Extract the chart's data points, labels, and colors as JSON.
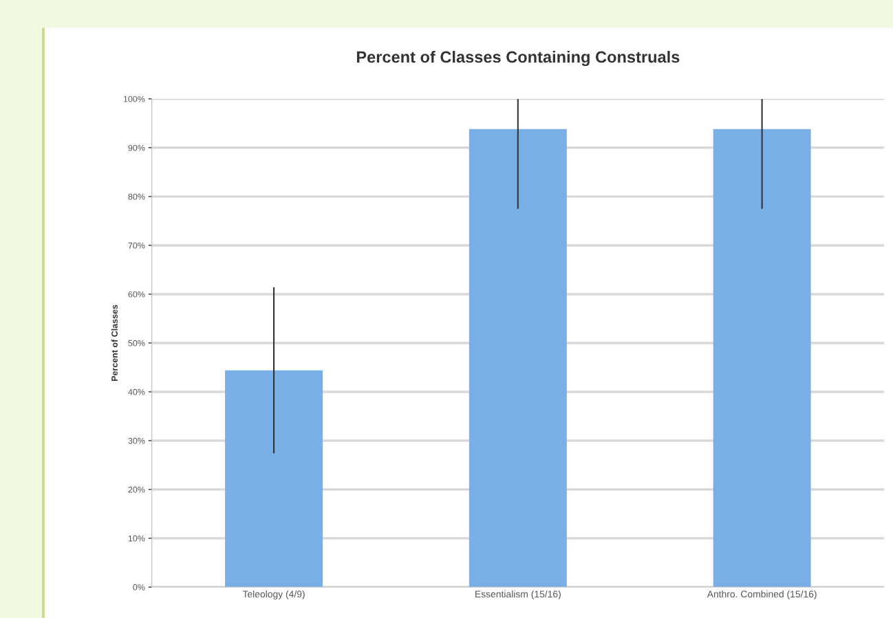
{
  "chart_data": {
    "type": "bar",
    "title": "Percent of Classes Containing Construals",
    "ylabel": "Percent of Classes",
    "categories": [
      "Teleology (4/9)",
      "Essentialism (15/16)",
      "Anthro. Combined (15/16)"
    ],
    "values": [
      44.4,
      93.8,
      93.8
    ],
    "color": "#7aaee6",
    "errors": [
      17,
      [
        77.5,
        100
      ],
      [
        77.5,
        100
      ]
    ],
    "ylim": [
      0,
      100
    ],
    "yticks": [
      {
        "value": 0,
        "label": "0%"
      },
      {
        "value": 10,
        "label": "10%"
      },
      {
        "value": 20,
        "label": "20%"
      },
      {
        "value": 30,
        "label": "30%"
      },
      {
        "value": 40,
        "label": "40%"
      },
      {
        "value": 50,
        "label": "50%"
      },
      {
        "value": 60,
        "label": "60%"
      },
      {
        "value": 70,
        "label": "70%"
      },
      {
        "value": 80,
        "label": "80%"
      },
      {
        "value": 90,
        "label": "90%"
      },
      {
        "value": 100,
        "label": "100%"
      }
    ],
    "grid": "y"
  }
}
